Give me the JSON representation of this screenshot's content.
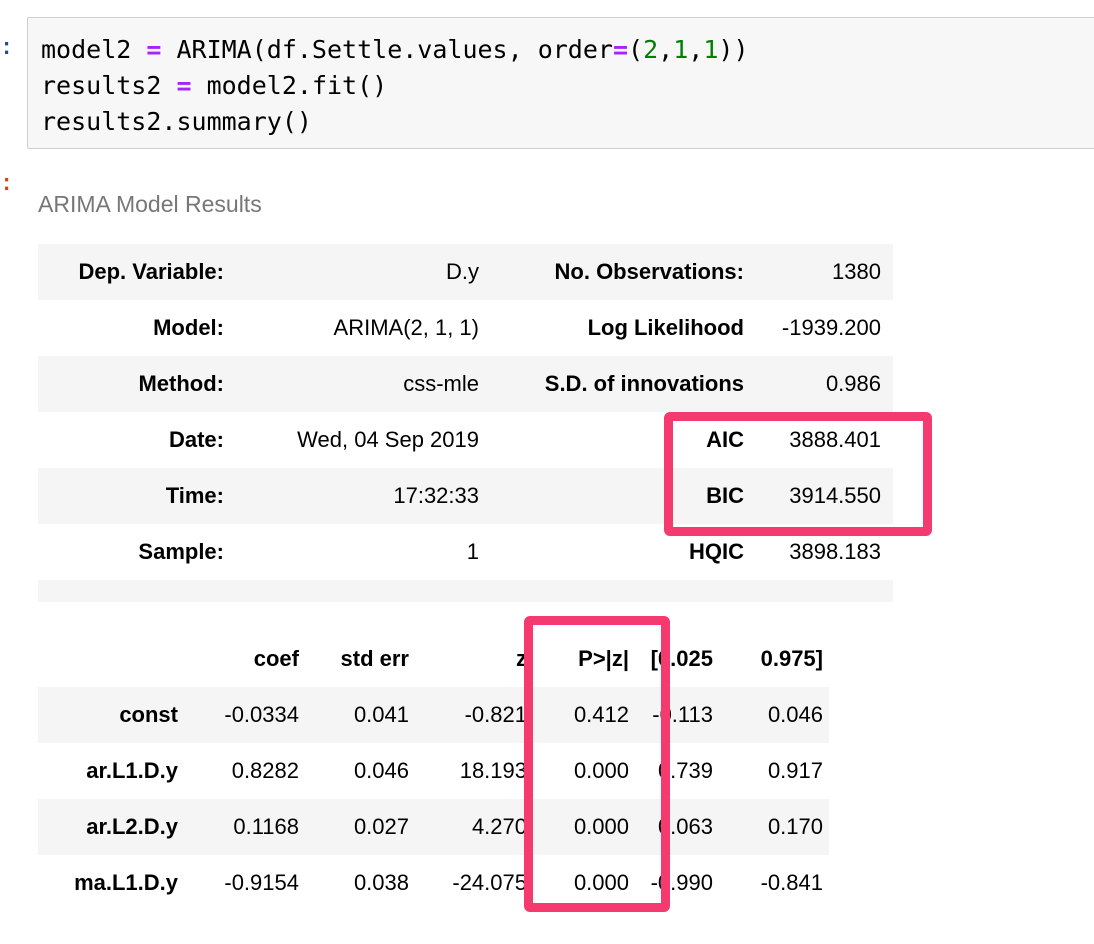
{
  "prompts": {
    "input": ":",
    "output": ":"
  },
  "code": {
    "line1": {
      "a": "model2 ",
      "op": "=",
      "b": " ARIMA(df.Settle.values, order",
      "op2": "=",
      "c": "(",
      "n1": "2",
      "s1": ",",
      "n2": "1",
      "s2": ",",
      "n3": "1",
      "d": "))"
    },
    "line2": {
      "a": "results2 ",
      "op": "=",
      "b": " model2.fit()"
    },
    "line3": "results2.summary()"
  },
  "output": {
    "title": "ARIMA Model Results",
    "info_rows": [
      {
        "label1": "Dep. Variable:",
        "value1": "D.y",
        "label2": "No. Observations:",
        "value2": "1380"
      },
      {
        "label1": "Model:",
        "value1": "ARIMA(2, 1, 1)",
        "label2": "Log Likelihood",
        "value2": "-1939.200"
      },
      {
        "label1": "Method:",
        "value1": "css-mle",
        "label2": "S.D. of innovations",
        "value2": "0.986"
      },
      {
        "label1": "Date:",
        "value1": "Wed, 04 Sep 2019",
        "label2": "AIC",
        "value2": "3888.401"
      },
      {
        "label1": "Time:",
        "value1": "17:32:33",
        "label2": "BIC",
        "value2": "3914.550"
      },
      {
        "label1": "Sample:",
        "value1": "1",
        "label2": "HQIC",
        "value2": "3898.183"
      }
    ],
    "coef_table": {
      "headers": [
        "",
        "coef",
        "std err",
        "z",
        "P>|z|",
        "[0.025",
        "0.975]"
      ],
      "rows": [
        {
          "name": "const",
          "coef": "-0.0334",
          "std_err": "0.041",
          "z": "-0.821",
          "p": "0.412",
          "lo": "-0.113",
          "hi": "0.046"
        },
        {
          "name": "ar.L1.D.y",
          "coef": "0.8282",
          "std_err": "0.046",
          "z": "18.193",
          "p": "0.000",
          "lo": "0.739",
          "hi": "0.917"
        },
        {
          "name": "ar.L2.D.y",
          "coef": "0.1168",
          "std_err": "0.027",
          "z": "4.270",
          "p": "0.000",
          "lo": "0.063",
          "hi": "0.170"
        },
        {
          "name": "ma.L1.D.y",
          "coef": "-0.9154",
          "std_err": "0.038",
          "z": "-24.075",
          "p": "0.000",
          "lo": "-0.990",
          "hi": "-0.841"
        }
      ]
    }
  },
  "colors": {
    "highlight_box": "#f43a6e",
    "keyword_operator": "#aa22ff",
    "number_literal": "#008000",
    "input_prompt": "#303f9f",
    "output_prompt": "#d84315"
  }
}
